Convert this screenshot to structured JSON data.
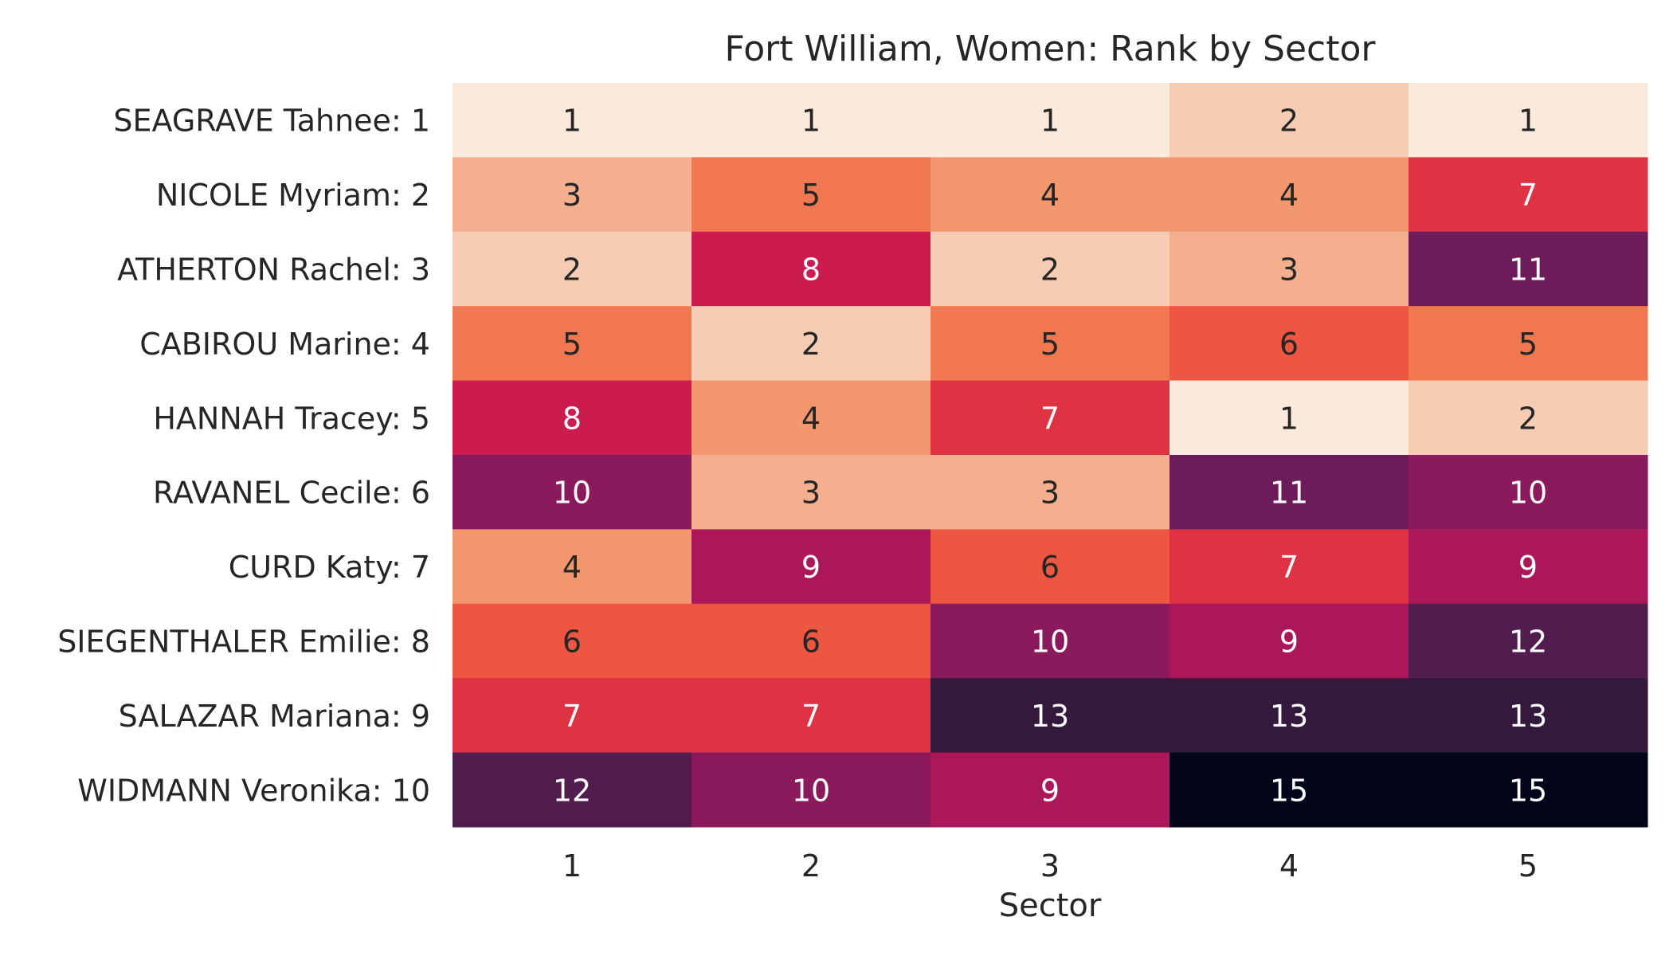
{
  "chart_data": {
    "type": "heatmap",
    "title": "Fort William, Women: Rank by Sector",
    "xlabel": "Sector",
    "ylabel": "",
    "x_categories": [
      "1",
      "2",
      "3",
      "4",
      "5"
    ],
    "y_categories": [
      "SEAGRAVE Tahnee: 1",
      "NICOLE Myriam: 2",
      "ATHERTON Rachel: 3",
      "CABIROU Marine: 4",
      "HANNAH Tracey: 5",
      "RAVANEL Cecile: 6",
      "CURD Katy: 7",
      "SIEGENTHALER Emilie: 8",
      "SALAZAR Mariana: 9",
      "WIDMANN Veronika: 10"
    ],
    "values": [
      [
        1,
        1,
        1,
        2,
        1
      ],
      [
        3,
        5,
        4,
        4,
        7
      ],
      [
        2,
        8,
        2,
        3,
        11
      ],
      [
        5,
        2,
        5,
        6,
        5
      ],
      [
        8,
        4,
        7,
        1,
        2
      ],
      [
        10,
        3,
        3,
        11,
        10
      ],
      [
        4,
        9,
        6,
        7,
        9
      ],
      [
        6,
        6,
        10,
        9,
        12
      ],
      [
        7,
        7,
        13,
        13,
        13
      ],
      [
        12,
        10,
        9,
        15,
        15
      ]
    ],
    "value_range": [
      1,
      15
    ],
    "colormap": "rocket_r",
    "color_scale": {
      "1": "#faeadc",
      "2": "#f6cdb4",
      "3": "#f4b08e",
      "4": "#f3976f",
      "5": "#f17751",
      "6": "#ed5640",
      "7": "#df3242",
      "8": "#cb1b4f",
      "9": "#ac1759",
      "10": "#8b1a5c",
      "11": "#6d1c59",
      "12": "#511d4e",
      "13": "#35193d",
      "15": "#03051a"
    },
    "text_color_light": "#ffffff",
    "text_color_dark": "#262626",
    "colorbar": false,
    "grid": false
  }
}
